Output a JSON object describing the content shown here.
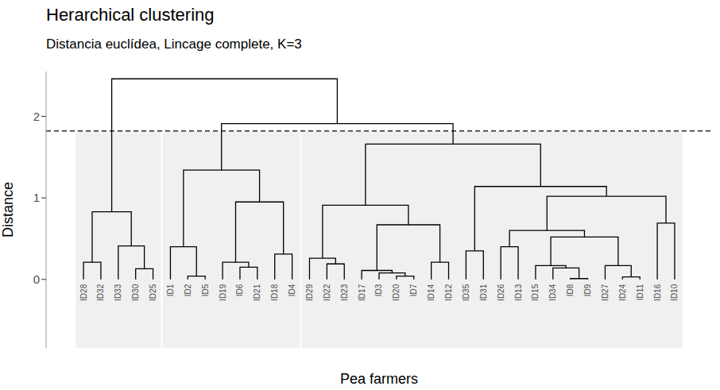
{
  "chart_data": {
    "type": "dendrogram",
    "title": "Herarchical clustering",
    "subtitle": "Distancia euclídea, Lincage complete, K=3",
    "x_label": "Pea farmers",
    "y_label": "Distance",
    "leaves": [
      "ID28",
      "ID32",
      "ID33",
      "ID30",
      "ID25",
      "ID1",
      "ID2",
      "ID5",
      "ID19",
      "ID6",
      "ID21",
      "ID18",
      "ID4",
      "ID29",
      "ID22",
      "ID23",
      "ID17",
      "ID3",
      "ID20",
      "ID7",
      "ID14",
      "ID12",
      "ID35",
      "ID31",
      "ID26",
      "ID13",
      "ID15",
      "ID34",
      "ID8",
      "ID9",
      "ID27",
      "ID24",
      "ID11",
      "ID16",
      "ID10"
    ],
    "merges": [
      {
        "left": "ID28",
        "right": "ID32",
        "height": 0.21
      },
      {
        "left": "ID30",
        "right": "ID25",
        "height": 0.13
      },
      {
        "left": "ID33",
        "right": 1,
        "height": 0.41
      },
      {
        "left": 0,
        "right": 2,
        "height": 0.83
      },
      {
        "left": "ID2",
        "right": "ID5",
        "height": 0.04
      },
      {
        "left": "ID1",
        "right": 4,
        "height": 0.4
      },
      {
        "left": "ID6",
        "right": "ID21",
        "height": 0.15
      },
      {
        "left": "ID19",
        "right": 6,
        "height": 0.21
      },
      {
        "left": "ID18",
        "right": "ID4",
        "height": 0.31
      },
      {
        "left": 7,
        "right": 8,
        "height": 0.95
      },
      {
        "left": 5,
        "right": 9,
        "height": 1.34
      },
      {
        "left": "ID22",
        "right": "ID23",
        "height": 0.19
      },
      {
        "left": "ID29",
        "right": 11,
        "height": 0.26
      },
      {
        "left": "ID20",
        "right": "ID7",
        "height": 0.04
      },
      {
        "left": "ID3",
        "right": 13,
        "height": 0.08
      },
      {
        "left": "ID17",
        "right": 14,
        "height": 0.11
      },
      {
        "left": "ID14",
        "right": "ID12",
        "height": 0.21
      },
      {
        "left": 15,
        "right": 16,
        "height": 0.67
      },
      {
        "left": 12,
        "right": 17,
        "height": 0.91
      },
      {
        "left": "ID35",
        "right": "ID31",
        "height": 0.35
      },
      {
        "left": "ID26",
        "right": "ID13",
        "height": 0.4
      },
      {
        "left": "ID8",
        "right": "ID9",
        "height": 0.01
      },
      {
        "left": "ID34",
        "right": 21,
        "height": 0.14
      },
      {
        "left": "ID15",
        "right": 22,
        "height": 0.17
      },
      {
        "left": "ID24",
        "right": "ID11",
        "height": 0.03
      },
      {
        "left": "ID27",
        "right": 24,
        "height": 0.17
      },
      {
        "left": 23,
        "right": 25,
        "height": 0.52
      },
      {
        "left": 20,
        "right": 26,
        "height": 0.6
      },
      {
        "left": "ID16",
        "right": "ID10",
        "height": 0.69
      },
      {
        "left": 27,
        "right": 28,
        "height": 1.02
      },
      {
        "left": 19,
        "right": 29,
        "height": 1.14
      },
      {
        "left": 18,
        "right": 30,
        "height": 1.66
      },
      {
        "left": 10,
        "right": 31,
        "height": 1.91
      },
      {
        "left": 3,
        "right": 32,
        "height": 2.46
      }
    ],
    "cut_height": 1.82,
    "ylim": [
      -0.84,
      2.55
    ],
    "yticks": [
      0,
      1,
      2
    ],
    "tick_labels": "y"
  }
}
